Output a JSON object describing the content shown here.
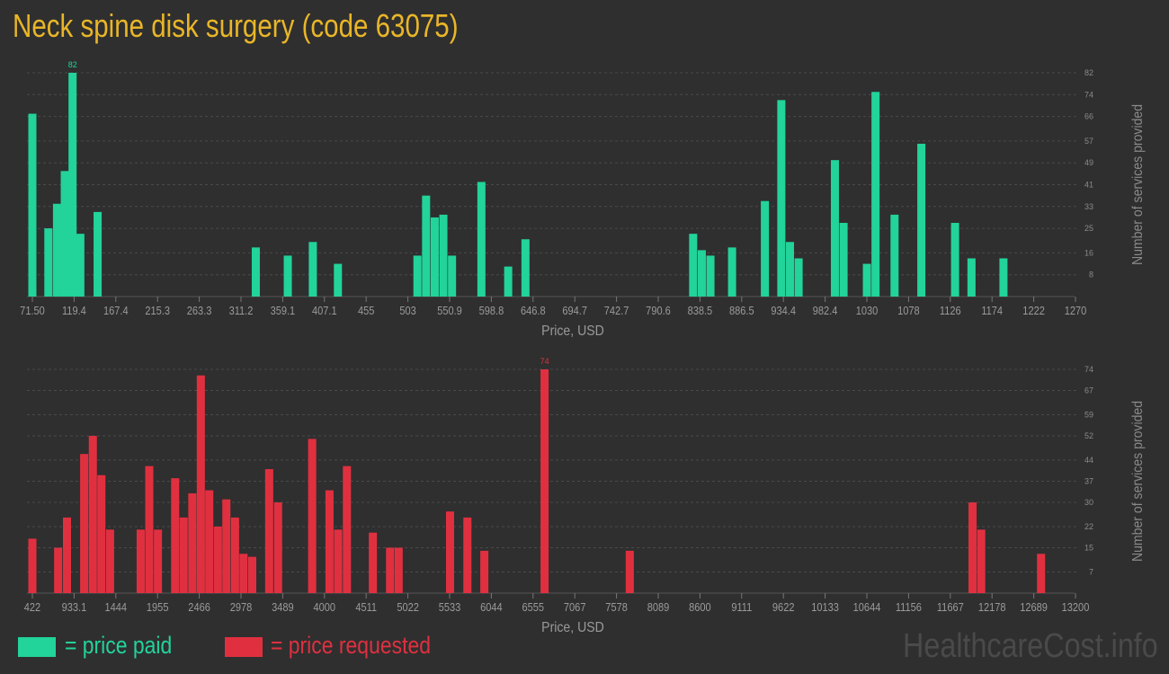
{
  "title": "Neck spine disk surgery (code 63075)",
  "legend": {
    "paid_label": "= price paid",
    "requested_label": "= price requested",
    "paid_color": "#22d39a",
    "requested_color": "#e03040"
  },
  "watermark": "HealthcareCost.info",
  "chart_data": [
    {
      "type": "bar",
      "name": "price paid",
      "xlabel": "Price, USD",
      "ylabel": "Number of services provided",
      "x_range": [
        71.5,
        1270
      ],
      "ylim": [
        0,
        82
      ],
      "xticks": [
        "71.50",
        "119.4",
        "167.4",
        "215.3",
        "263.3",
        "311.2",
        "359.1",
        "407.1",
        "455",
        "503",
        "550.9",
        "598.8",
        "646.8",
        "694.7",
        "742.7",
        "790.6",
        "838.5",
        "886.5",
        "934.4",
        "982.4",
        "1030",
        "1078",
        "1126",
        "1174",
        "1222",
        "1270"
      ],
      "yticks": [
        8,
        16,
        25,
        33,
        41,
        49,
        57,
        66,
        74,
        82
      ],
      "max_label": "82",
      "grid": true,
      "bars": [
        {
          "x": 71.5,
          "value": 67
        },
        {
          "x": 90,
          "value": 25
        },
        {
          "x": 100,
          "value": 34
        },
        {
          "x": 109,
          "value": 46
        },
        {
          "x": 118,
          "value": 82
        },
        {
          "x": 127,
          "value": 23
        },
        {
          "x": 147,
          "value": 31
        },
        {
          "x": 330,
          "value": 18
        },
        {
          "x": 367,
          "value": 15
        },
        {
          "x": 396,
          "value": 20
        },
        {
          "x": 425,
          "value": 12
        },
        {
          "x": 517,
          "value": 15
        },
        {
          "x": 527,
          "value": 37
        },
        {
          "x": 537,
          "value": 29
        },
        {
          "x": 547,
          "value": 30
        },
        {
          "x": 557,
          "value": 15
        },
        {
          "x": 591,
          "value": 42
        },
        {
          "x": 622,
          "value": 11
        },
        {
          "x": 642,
          "value": 21
        },
        {
          "x": 836,
          "value": 23
        },
        {
          "x": 846,
          "value": 17
        },
        {
          "x": 856,
          "value": 15
        },
        {
          "x": 881,
          "value": 18
        },
        {
          "x": 919,
          "value": 35
        },
        {
          "x": 938,
          "value": 72
        },
        {
          "x": 948,
          "value": 20
        },
        {
          "x": 958,
          "value": 14
        },
        {
          "x": 1000,
          "value": 50
        },
        {
          "x": 1010,
          "value": 27
        },
        {
          "x": 1037,
          "value": 12
        },
        {
          "x": 1047,
          "value": 75
        },
        {
          "x": 1069,
          "value": 30
        },
        {
          "x": 1100,
          "value": 56
        },
        {
          "x": 1139,
          "value": 27
        },
        {
          "x": 1158,
          "value": 14
        },
        {
          "x": 1195,
          "value": 14
        }
      ]
    },
    {
      "type": "bar",
      "name": "price requested",
      "xlabel": "Price, USD",
      "ylabel": "Number of services provided",
      "x_range": [
        422,
        13200
      ],
      "ylim": [
        0,
        74
      ],
      "xticks": [
        "422",
        "933.1",
        "1444",
        "1955",
        "2466",
        "2978",
        "3489",
        "4000",
        "4511",
        "5022",
        "5533",
        "6044",
        "6555",
        "7067",
        "7578",
        "8089",
        "8600",
        "9111",
        "9622",
        "10133",
        "10644",
        "11156",
        "11667",
        "12178",
        "12689",
        "13200"
      ],
      "yticks": [
        7,
        15,
        22,
        30,
        37,
        44,
        52,
        59,
        67,
        74
      ],
      "max_label": "74",
      "grid": true,
      "bars": [
        {
          "x": 422,
          "value": 18
        },
        {
          "x": 740,
          "value": 15
        },
        {
          "x": 849,
          "value": 25
        },
        {
          "x": 1061,
          "value": 46
        },
        {
          "x": 1168,
          "value": 52
        },
        {
          "x": 1273,
          "value": 39
        },
        {
          "x": 1380,
          "value": 21
        },
        {
          "x": 1758,
          "value": 21
        },
        {
          "x": 1864,
          "value": 42
        },
        {
          "x": 1971,
          "value": 21
        },
        {
          "x": 2183,
          "value": 38
        },
        {
          "x": 2288,
          "value": 25
        },
        {
          "x": 2395,
          "value": 33
        },
        {
          "x": 2500,
          "value": 72
        },
        {
          "x": 2604,
          "value": 34
        },
        {
          "x": 2710,
          "value": 22
        },
        {
          "x": 2815,
          "value": 31
        },
        {
          "x": 2922,
          "value": 25
        },
        {
          "x": 3027,
          "value": 13
        },
        {
          "x": 3134,
          "value": 12
        },
        {
          "x": 3343,
          "value": 41
        },
        {
          "x": 3453,
          "value": 30
        },
        {
          "x": 3873,
          "value": 51
        },
        {
          "x": 4087,
          "value": 34
        },
        {
          "x": 4193,
          "value": 21
        },
        {
          "x": 4302,
          "value": 42
        },
        {
          "x": 4622,
          "value": 20
        },
        {
          "x": 4834,
          "value": 15
        },
        {
          "x": 4940,
          "value": 15
        },
        {
          "x": 5574,
          "value": 27
        },
        {
          "x": 5788,
          "value": 25
        },
        {
          "x": 5997,
          "value": 14
        },
        {
          "x": 6740,
          "value": 74
        },
        {
          "x": 7791,
          "value": 14
        },
        {
          "x": 12019,
          "value": 30
        },
        {
          "x": 12126,
          "value": 21
        },
        {
          "x": 12864,
          "value": 13
        }
      ]
    }
  ]
}
